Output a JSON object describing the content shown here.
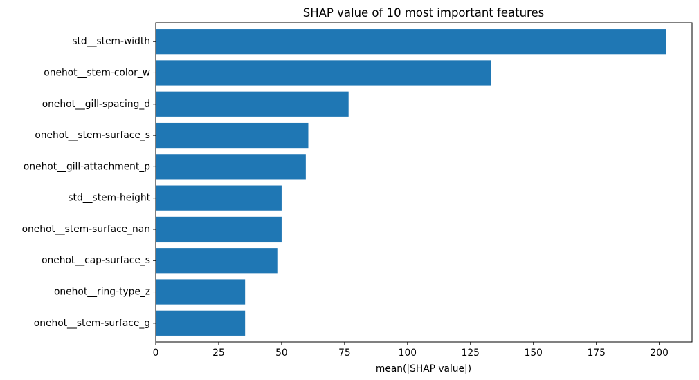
{
  "chart_data": {
    "type": "bar",
    "orientation": "horizontal",
    "title": "SHAP value of 10 most important features",
    "xlabel": "mean(|SHAP value|)",
    "ylabel": "",
    "categories": [
      "std__stem-width",
      "onehot__stem-color_w",
      "onehot__gill-spacing_d",
      "onehot__stem-surface_s",
      "onehot__gill-attachment_p",
      "std__stem-height",
      "onehot__stem-surface_nan",
      "onehot__cap-surface_s",
      "onehot__ring-type_z",
      "onehot__stem-surface_g"
    ],
    "values": [
      202.7,
      133.2,
      76.6,
      60.6,
      59.6,
      50.0,
      50.0,
      48.3,
      35.5,
      35.5
    ],
    "xlim": [
      0,
      213
    ],
    "xticks": [
      0,
      25,
      50,
      75,
      100,
      125,
      150,
      175,
      200
    ],
    "grid": false,
    "bar_color": "#1f77b4"
  }
}
